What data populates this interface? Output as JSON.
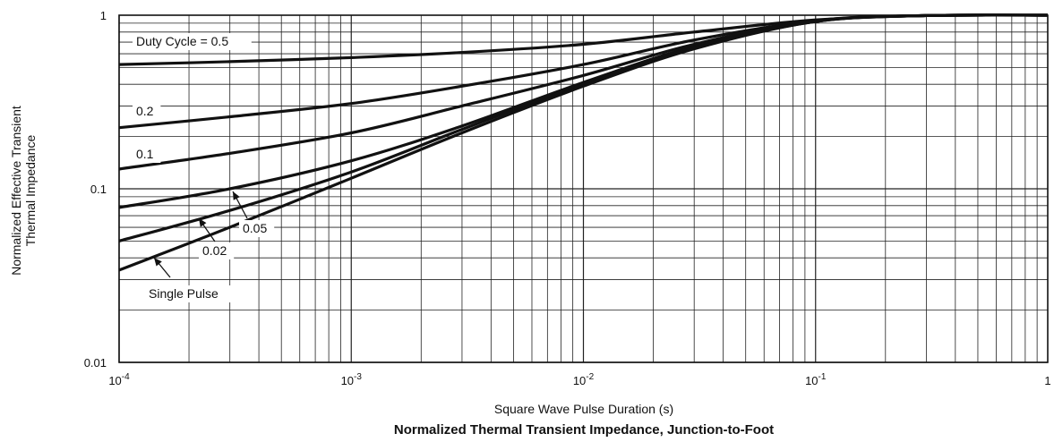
{
  "chart_data": {
    "type": "line",
    "title": "Normalized Thermal Transient Impedance, Junction-to-Foot",
    "xlabel": "Square Wave Pulse Duration (s)",
    "ylabel": [
      "Normalized Effective Transient",
      "Thermal Impedance"
    ],
    "x_scale": "log",
    "y_scale": "log",
    "xlim": [
      0.0001,
      1
    ],
    "ylim": [
      0.01,
      1
    ],
    "grid": true,
    "x_ticks": [
      {
        "value": 0.0001,
        "base": "10",
        "exp": "-4"
      },
      {
        "value": 0.001,
        "base": "10",
        "exp": "-3"
      },
      {
        "value": 0.01,
        "base": "10",
        "exp": "-2"
      },
      {
        "value": 0.1,
        "base": "10",
        "exp": "-1"
      },
      {
        "value": 1,
        "base": "1",
        "exp": ""
      }
    ],
    "y_ticks": [
      {
        "value": 0.01,
        "label": "0.01"
      },
      {
        "value": 0.1,
        "label": "0.1"
      },
      {
        "value": 1,
        "label": "1"
      }
    ],
    "series": [
      {
        "name": "Duty Cycle = 0.5",
        "x": [
          0.0001,
          0.0003,
          0.001,
          0.003,
          0.01,
          0.03,
          0.1,
          0.3,
          1
        ],
        "y": [
          0.52,
          0.54,
          0.57,
          0.61,
          0.68,
          0.8,
          0.94,
          0.995,
          1.0
        ]
      },
      {
        "name": "0.2",
        "x": [
          0.0001,
          0.0003,
          0.001,
          0.003,
          0.01,
          0.03,
          0.1,
          0.3,
          1
        ],
        "y": [
          0.225,
          0.26,
          0.31,
          0.39,
          0.52,
          0.72,
          0.93,
          0.995,
          1.0
        ]
      },
      {
        "name": "0.1",
        "x": [
          0.0001,
          0.0003,
          0.001,
          0.003,
          0.01,
          0.03,
          0.1,
          0.3,
          1
        ],
        "y": [
          0.13,
          0.16,
          0.21,
          0.3,
          0.45,
          0.68,
          0.93,
          0.995,
          1.0
        ]
      },
      {
        "name": "0.05",
        "x": [
          0.0001,
          0.0003,
          0.001,
          0.003,
          0.01,
          0.03,
          0.1,
          0.3,
          1
        ],
        "y": [
          0.078,
          0.1,
          0.145,
          0.23,
          0.41,
          0.66,
          0.92,
          0.995,
          1.0
        ]
      },
      {
        "name": "0.02",
        "x": [
          0.0001,
          0.0003,
          0.001,
          0.003,
          0.01,
          0.03,
          0.1,
          0.3,
          1
        ],
        "y": [
          0.05,
          0.075,
          0.125,
          0.22,
          0.4,
          0.65,
          0.92,
          0.995,
          1.0
        ]
      },
      {
        "name": "Single Pulse",
        "x": [
          0.0001,
          0.0003,
          0.001,
          0.003,
          0.01,
          0.03,
          0.1,
          0.3,
          1
        ],
        "y": [
          0.034,
          0.06,
          0.115,
          0.21,
          0.39,
          0.64,
          0.92,
          0.995,
          1.0
        ]
      }
    ],
    "annotations": [
      {
        "series": "Duty Cycle = 0.5",
        "text": "Duty Cycle = 0.5"
      },
      {
        "series": "0.2",
        "text": "0.2"
      },
      {
        "series": "0.1",
        "text": "0.1"
      },
      {
        "series": "0.05",
        "text": "0.05"
      },
      {
        "series": "0.02",
        "text": "0.02"
      },
      {
        "series": "Single Pulse",
        "text": "Single Pulse"
      }
    ]
  }
}
